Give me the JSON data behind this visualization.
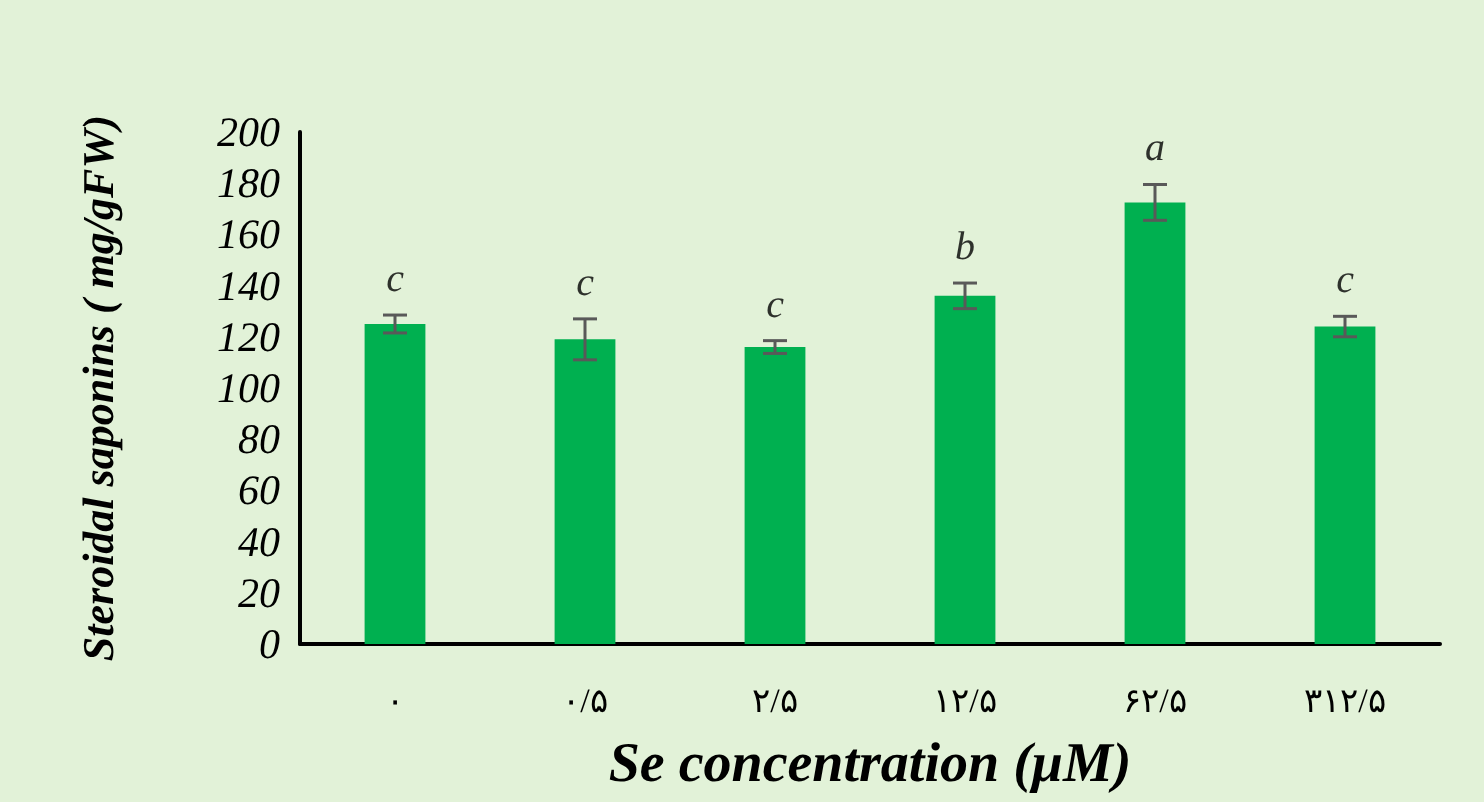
{
  "chart_data": {
    "type": "bar",
    "xlabel": "Se concentration (μM)",
    "ylabel": "Steroidal saponins ( mg/gFW)",
    "categories": [
      "۰",
      "۰/۵",
      "۲/۵",
      "۱۲/۵",
      "۶۲/۵",
      "۳۱۲/۵"
    ],
    "values": [
      125,
      119,
      116,
      136,
      172.5,
      124
    ],
    "errors": [
      3.5,
      8,
      2.5,
      5,
      7,
      4
    ],
    "color": "#00b050",
    "ylim": [
      0,
      200
    ],
    "yticks": [
      0,
      20,
      40,
      60,
      80,
      100,
      120,
      140,
      160,
      180,
      200
    ],
    "annotations": [
      "c",
      "c",
      "c",
      "b",
      "a",
      "c"
    ]
  }
}
